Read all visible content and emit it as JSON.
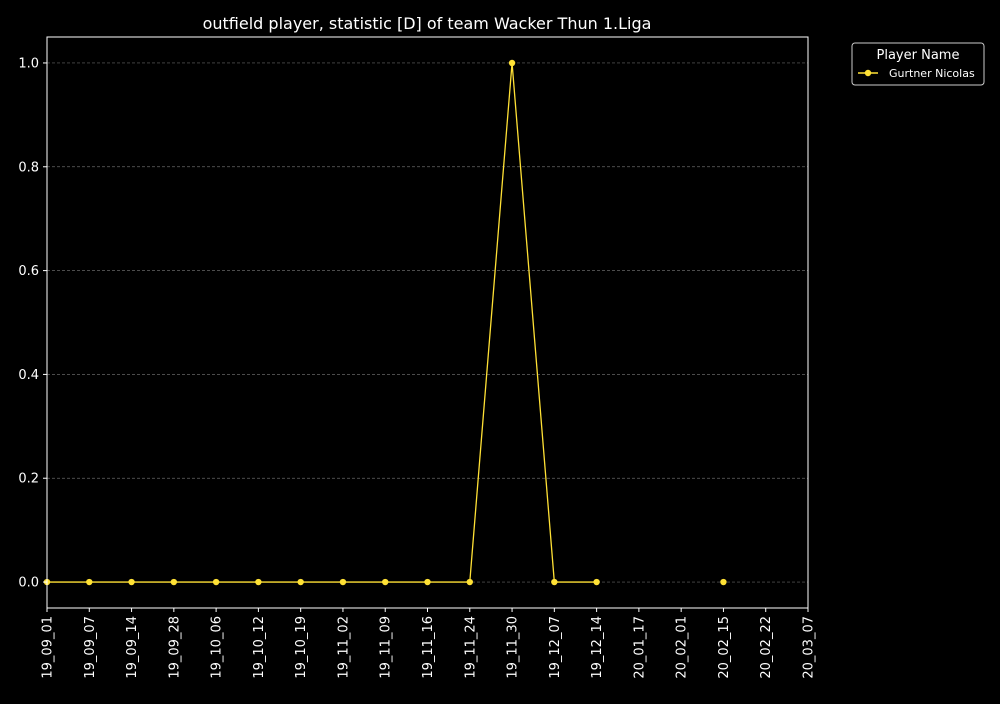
{
  "chart_data": {
    "type": "line",
    "title": "outfield player, statistic [D] of team Wacker Thun 1.Liga",
    "xlabel": "",
    "ylabel": "",
    "categories": [
      "19_09_01",
      "19_09_07",
      "19_09_14",
      "19_09_28",
      "19_10_06",
      "19_10_12",
      "19_10_19",
      "19_11_02",
      "19_11_09",
      "19_11_16",
      "19_11_24",
      "19_11_30",
      "19_12_07",
      "19_12_14",
      "20_01_17",
      "20_02_01",
      "20_02_15",
      "20_02_22",
      "20_03_07"
    ],
    "ylim": [
      -0.05,
      1.05
    ],
    "yticks": [
      0.0,
      0.2,
      0.4,
      0.6,
      0.8,
      1.0
    ],
    "ytick_labels": [
      "0.0",
      "0.2",
      "0.4",
      "0.6",
      "0.8",
      "1.0"
    ],
    "grid": "y-dashed",
    "legend": {
      "title": "Player Name",
      "placement": "outside-top-right"
    },
    "series": [
      {
        "name": "Gurtner Nicolas",
        "color": "#ffe135",
        "values": [
          0,
          0,
          0,
          0,
          0,
          0,
          0,
          0,
          0,
          0,
          0,
          1,
          0,
          0,
          null,
          null,
          0,
          null,
          null
        ]
      }
    ]
  },
  "colors": {
    "background": "#000000",
    "axes": "#ffffff",
    "grid": "#666666",
    "text": "#ffffff"
  }
}
